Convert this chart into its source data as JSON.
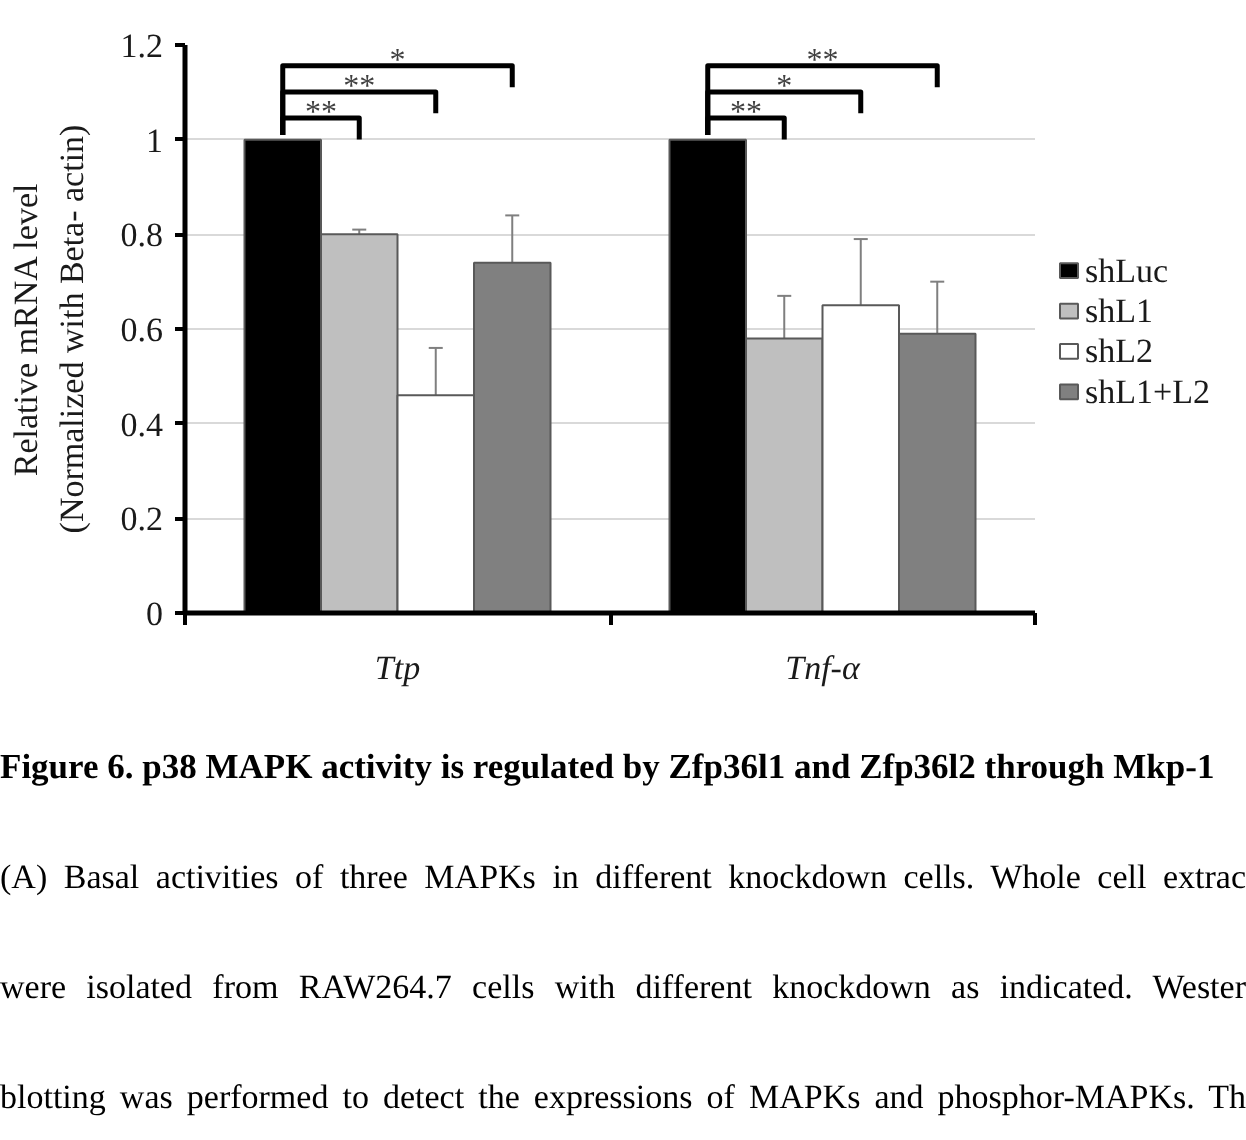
{
  "chart_data": {
    "type": "bar",
    "ylabel": "Relative mRNA level\n(Normalized with Beta- actin)",
    "categories": [
      "Ttp",
      "Tnf-α"
    ],
    "series": [
      {
        "name": "shLuc",
        "color": "#000000",
        "values": [
          1,
          1
        ]
      },
      {
        "name": "shL1",
        "color": "#bfbfbf",
        "values": [
          0.8,
          0.58
        ],
        "errors": [
          [
            0.8,
            0.81
          ],
          [
            0.58,
            0.67
          ]
        ]
      },
      {
        "name": "shL2",
        "color": "#ffffff",
        "values": [
          0.46,
          0.65
        ],
        "errors": [
          [
            0.46,
            0.56
          ],
          [
            0.65,
            0.79
          ]
        ]
      },
      {
        "name": "shL1+L2",
        "color": "#808080",
        "values": [
          0.74,
          0.59
        ],
        "errors": [
          [
            0.74,
            0.84
          ],
          [
            0.59,
            0.7
          ]
        ]
      }
    ],
    "ylim": [
      0,
      1.2
    ],
    "yticks": [
      0,
      0.2,
      0.4,
      0.6,
      0.8,
      1,
      1.2
    ],
    "grid": "y",
    "legend": "right",
    "annotations": [
      "**",
      "**",
      "*",
      "**",
      "*",
      "**",
      "Figure 6. p38 MAPK activity is regulated by Zfp36l1 and Zfp36l2 through Mkp-1",
      "(A) Basal activities of three MAPKs in different knockdown cells. Whole cell extrac",
      "were isolated from RAW264.7 cells with different knockdown as indicated. Wester",
      "blotting was performed to detect the expressions of MAPKs and phosphor-MAPKs. Th"
    ]
  }
}
